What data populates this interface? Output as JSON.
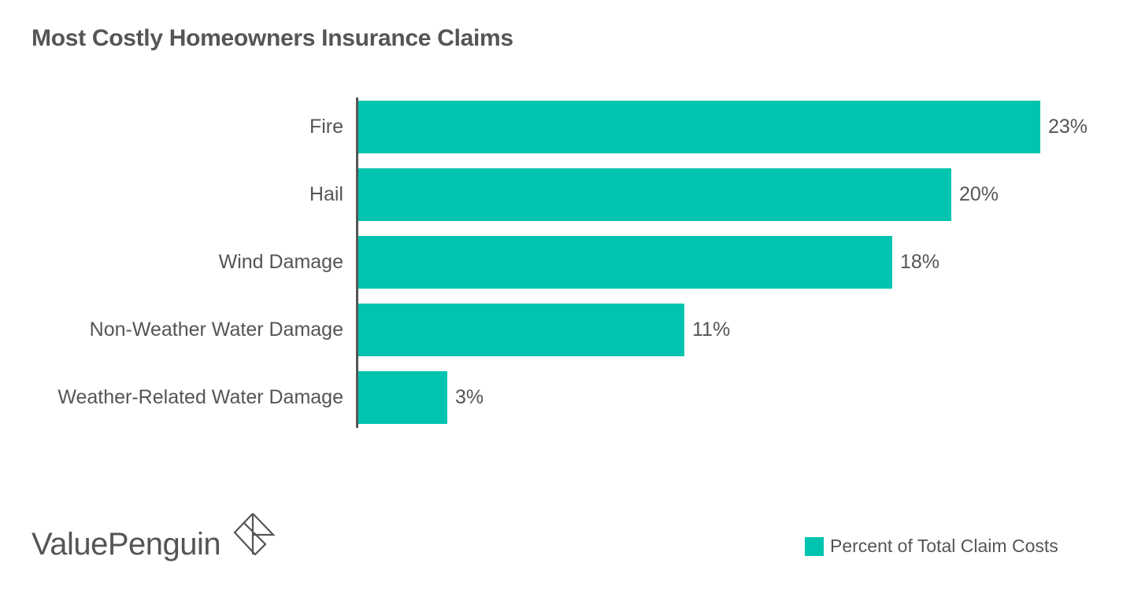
{
  "header": {
    "title": "Most Costly Homeowners Insurance Claims"
  },
  "colors": {
    "bar": "#00C4AF",
    "text": "#555555",
    "axis": "#555555"
  },
  "chart_data": {
    "type": "bar",
    "orientation": "horizontal",
    "title": "Most Costly Homeowners Insurance Claims",
    "xlabel": "",
    "ylabel": "",
    "categories": [
      "Fire",
      "Hail",
      "Wind Damage",
      "Non-Weather Water Damage",
      "Weather-Related Water Damage"
    ],
    "series": [
      {
        "name": "Percent of Total Claim Costs",
        "values": [
          23,
          20,
          18,
          11,
          3
        ],
        "labels": [
          "23%",
          "20%",
          "18%",
          "11%",
          "3%"
        ],
        "color": "#00C4AF"
      }
    ],
    "xlim": [
      0,
      23
    ],
    "grid": false,
    "legend_position": "bottom-right",
    "data_labels": true
  },
  "legend": {
    "label": "Percent of Total Claim Costs"
  },
  "branding": {
    "logo_text": "ValuePenguin",
    "logo_icon": "valuepenguin-diamond-icon"
  }
}
